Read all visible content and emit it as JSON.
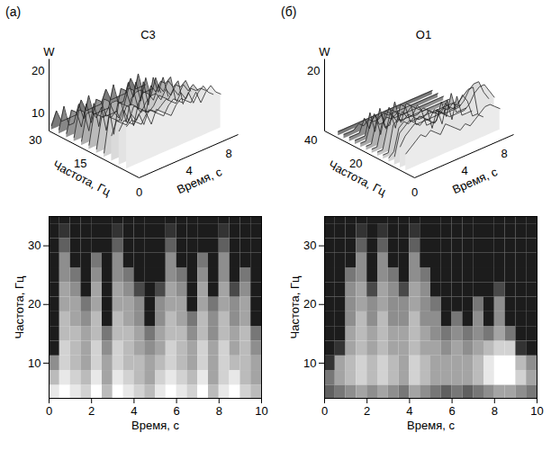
{
  "chart_data": [
    {
      "type": "heatmap",
      "panel_label": "(а)",
      "title": "C3",
      "surface": {
        "z_label": "W",
        "x_label": "Частота, Гц",
        "y_label": "Время, с",
        "xlim": [
          0,
          30
        ],
        "xticks": [
          0,
          15,
          30
        ],
        "ylim": [
          0,
          10
        ],
        "yticks": [
          4,
          8
        ],
        "zlim": [
          5,
          22
        ],
        "zticks": [
          10,
          20
        ]
      },
      "spectrogram": {
        "x_label": "Время, с",
        "y_label": "Частота, Гц",
        "xlim": [
          0,
          10
        ],
        "xticks": [
          0,
          2,
          4,
          6,
          8,
          10
        ],
        "ylim": [
          4,
          35
        ],
        "yticks": [
          10,
          20,
          30
        ]
      },
      "time": [
        0.25,
        0.75,
        1.25,
        1.75,
        2.25,
        2.75,
        3.25,
        3.75,
        4.25,
        4.75,
        5.25,
        5.75,
        6.25,
        6.75,
        7.25,
        7.75,
        8.25,
        8.75,
        9.25,
        9.75
      ],
      "frequency": [
        5,
        7.5,
        10,
        12.5,
        15,
        17.5,
        20,
        22.5,
        25,
        27.5,
        30,
        32.5,
        35
      ],
      "cells": [
        [
          15,
          16,
          15,
          14,
          16,
          13,
          16,
          15,
          14,
          13,
          15,
          16,
          15,
          14,
          16,
          13,
          15,
          16,
          14,
          13
        ],
        [
          13,
          15,
          14,
          13,
          15,
          12,
          15,
          14,
          13,
          12,
          14,
          15,
          14,
          13,
          15,
          12,
          14,
          15,
          13,
          12
        ],
        [
          11,
          14,
          13,
          12,
          14,
          12,
          14,
          13,
          13,
          12,
          13,
          14,
          13,
          12,
          14,
          12,
          14,
          13,
          13,
          12
        ],
        [
          6,
          14,
          13,
          12,
          14,
          11,
          14,
          13,
          12,
          11,
          12,
          14,
          13,
          12,
          14,
          12,
          14,
          12,
          13,
          11
        ],
        [
          6,
          13,
          13,
          12,
          13,
          10,
          13,
          13,
          12,
          10,
          12,
          13,
          13,
          11,
          13,
          11,
          13,
          12,
          13,
          10
        ],
        [
          6,
          13,
          12,
          11,
          13,
          6,
          13,
          12,
          11,
          6,
          11,
          13,
          12,
          10,
          13,
          11,
          13,
          11,
          12,
          6
        ],
        [
          6,
          12,
          12,
          10,
          12,
          6,
          12,
          12,
          11,
          6,
          11,
          12,
          12,
          6,
          12,
          10,
          12,
          11,
          12,
          6
        ],
        [
          6,
          12,
          11,
          6,
          12,
          6,
          12,
          11,
          8,
          6,
          8,
          12,
          11,
          6,
          12,
          6,
          12,
          8,
          11,
          6
        ],
        [
          6,
          11,
          10,
          6,
          11,
          6,
          11,
          10,
          6,
          6,
          6,
          11,
          10,
          6,
          11,
          6,
          11,
          6,
          10,
          6
        ],
        [
          6,
          11,
          6,
          6,
          10,
          6,
          11,
          6,
          6,
          6,
          6,
          11,
          6,
          6,
          10,
          6,
          11,
          6,
          6,
          6
        ],
        [
          6,
          9,
          6,
          6,
          6,
          6,
          9,
          6,
          6,
          6,
          6,
          9,
          6,
          6,
          6,
          6,
          9,
          6,
          6,
          6
        ],
        [
          6,
          7,
          6,
          6,
          6,
          6,
          7,
          6,
          6,
          6,
          6,
          7,
          6,
          6,
          6,
          6,
          7,
          6,
          6,
          6
        ],
        [
          6,
          6,
          6,
          6,
          6,
          6,
          6,
          6,
          6,
          6,
          6,
          6,
          6,
          6,
          6,
          6,
          6,
          6,
          6,
          6
        ]
      ]
    },
    {
      "type": "heatmap",
      "panel_label": "(б)",
      "title": "O1",
      "surface": {
        "z_label": "W",
        "x_label": "Частота, Гц",
        "y_label": "Время, с",
        "xlim": [
          0,
          40
        ],
        "xticks": [
          0,
          20,
          40
        ],
        "ylim": [
          0,
          10
        ],
        "yticks": [
          4,
          8
        ],
        "zlim": [
          5,
          22
        ],
        "zticks": [
          20
        ]
      },
      "spectrogram": {
        "x_label": "Время, с",
        "y_label": "Частота, Гц",
        "xlim": [
          0,
          10
        ],
        "xticks": [
          0,
          2,
          4,
          6,
          8,
          10
        ],
        "ylim": [
          4,
          35
        ],
        "yticks": [
          10,
          20,
          30
        ]
      },
      "time": [
        0.25,
        0.75,
        1.25,
        1.75,
        2.25,
        2.75,
        3.25,
        3.75,
        4.25,
        4.75,
        5.25,
        5.75,
        6.25,
        6.75,
        7.25,
        7.75,
        8.25,
        8.75,
        9.25,
        9.75
      ],
      "frequency": [
        5,
        7.5,
        10,
        12.5,
        15,
        17.5,
        20,
        22.5,
        25,
        27.5,
        30,
        32.5,
        35
      ],
      "cells": [
        [
          9,
          10,
          11,
          12,
          11,
          12,
          11,
          10,
          12,
          11,
          10,
          9,
          10,
          9,
          10,
          11,
          12,
          12,
          11,
          10
        ],
        [
          10,
          12,
          13,
          14,
          13,
          14,
          13,
          12,
          14,
          13,
          12,
          12,
          12,
          12,
          13,
          15,
          16,
          16,
          14,
          12
        ],
        [
          7,
          12,
          13,
          14,
          13,
          14,
          13,
          12,
          14,
          13,
          12,
          12,
          12,
          12,
          13,
          15,
          16,
          16,
          13,
          11
        ],
        [
          6,
          7,
          12,
          13,
          12,
          13,
          12,
          12,
          13,
          12,
          12,
          11,
          12,
          11,
          12,
          13,
          14,
          14,
          7,
          6
        ],
        [
          6,
          6,
          12,
          13,
          12,
          13,
          12,
          12,
          13,
          12,
          11,
          10,
          11,
          10,
          11,
          10,
          12,
          10,
          6,
          6
        ],
        [
          6,
          6,
          11,
          13,
          11,
          13,
          11,
          11,
          13,
          11,
          11,
          6,
          10,
          6,
          11,
          6,
          11,
          6,
          6,
          6
        ],
        [
          6,
          6,
          11,
          12,
          11,
          12,
          11,
          11,
          12,
          11,
          10,
          6,
          6,
          6,
          10,
          6,
          11,
          6,
          6,
          6
        ],
        [
          6,
          6,
          11,
          12,
          8,
          12,
          11,
          8,
          12,
          11,
          6,
          6,
          6,
          6,
          6,
          6,
          8,
          6,
          6,
          6
        ],
        [
          6,
          6,
          10,
          11,
          6,
          11,
          10,
          6,
          11,
          10,
          6,
          6,
          6,
          6,
          6,
          6,
          6,
          6,
          6,
          6
        ],
        [
          6,
          6,
          6,
          11,
          6,
          11,
          6,
          6,
          11,
          6,
          6,
          6,
          6,
          6,
          6,
          6,
          6,
          6,
          6,
          6
        ],
        [
          6,
          6,
          6,
          9,
          6,
          9,
          6,
          6,
          9,
          6,
          6,
          6,
          6,
          6,
          6,
          6,
          6,
          6,
          6,
          6
        ],
        [
          6,
          6,
          6,
          7,
          6,
          7,
          6,
          6,
          7,
          6,
          6,
          6,
          6,
          6,
          6,
          6,
          6,
          6,
          6,
          6
        ],
        [
          6,
          6,
          6,
          6,
          6,
          6,
          6,
          6,
          6,
          6,
          6,
          6,
          6,
          6,
          6,
          6,
          6,
          6,
          6,
          6
        ]
      ]
    }
  ]
}
